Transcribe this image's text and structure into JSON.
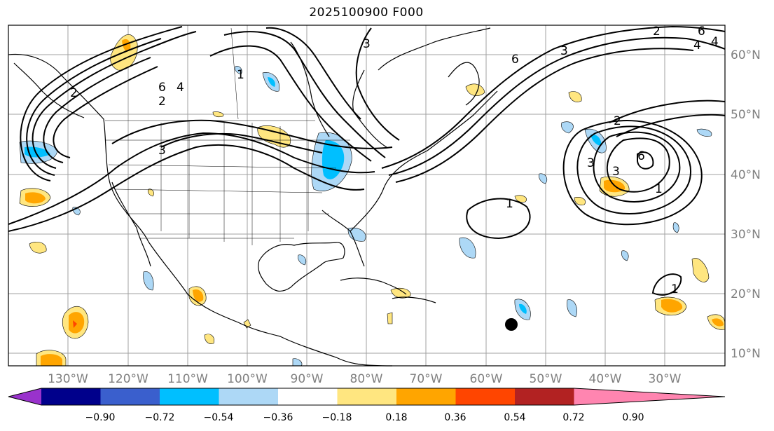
{
  "title": "2025100900 F000",
  "map": {
    "lon_labels": [
      "130°W",
      "120°W",
      "110°W",
      "100°W",
      "90°W",
      "80°W",
      "70°W",
      "60°W",
      "50°W",
      "40°W",
      "30°W"
    ],
    "lat_labels": [
      "60°N",
      "50°N",
      "40°N",
      "30°N",
      "20°N",
      "10°N"
    ],
    "contour_labels": [
      "6",
      "4",
      "2",
      "1",
      "6",
      "2",
      "6",
      "3",
      "3",
      "4",
      "2",
      "1",
      "2",
      "3",
      "6",
      "1",
      "1",
      "3",
      "3",
      "4"
    ],
    "marker": "storm-position-dot"
  },
  "colorbar": {
    "ticks": [
      "−0.90",
      "−0.72",
      "−0.54",
      "−0.36",
      "−0.18",
      "0.18",
      "0.36",
      "0.54",
      "0.72",
      "0.90"
    ],
    "colors": [
      "#9932cc",
      "#00008b",
      "#3a5fcd",
      "#00bfff",
      "#add8f6",
      "#ffffff",
      "#ffe680",
      "#ffa500",
      "#ff4500",
      "#b22222",
      "#ff85b0"
    ]
  }
}
